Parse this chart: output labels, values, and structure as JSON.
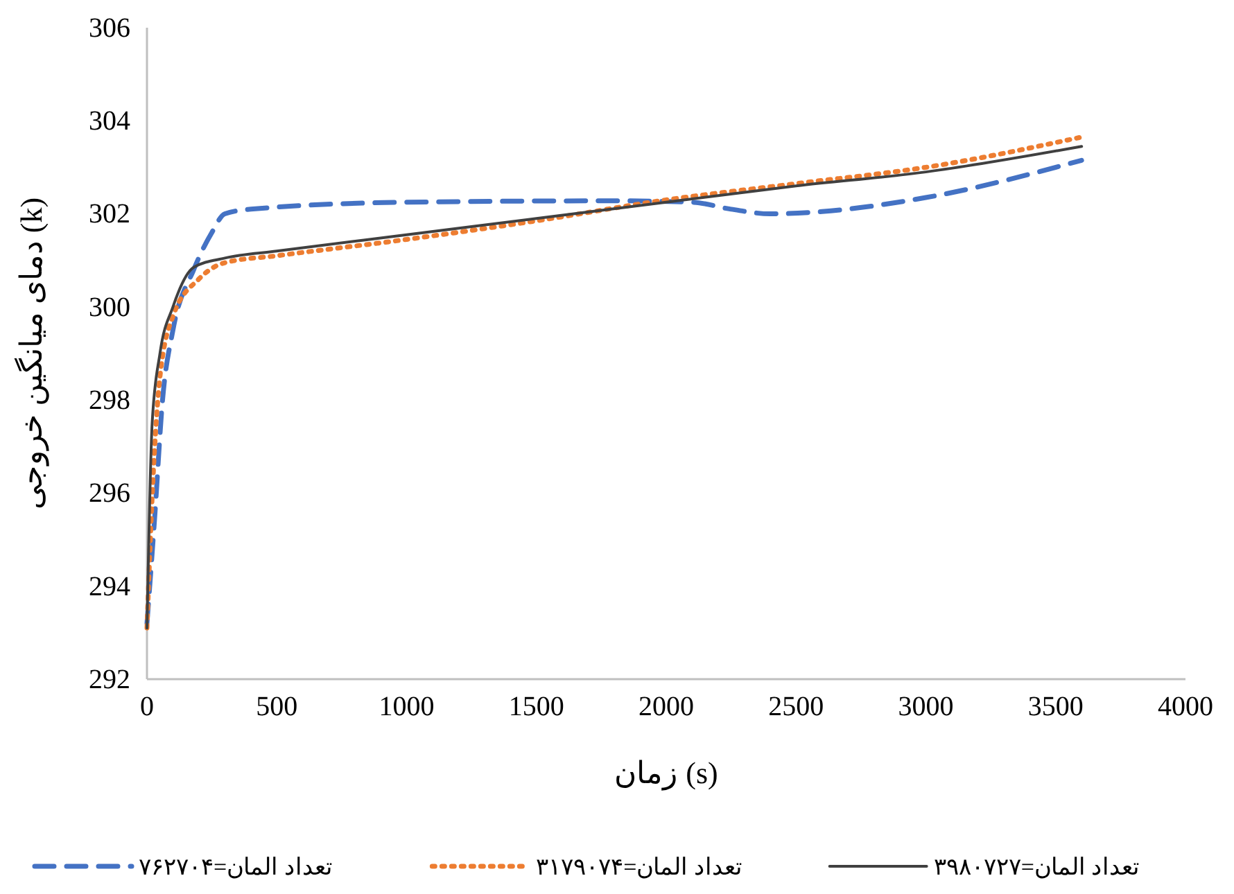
{
  "chart_data": {
    "type": "line",
    "xlabel": "زمان (s)",
    "ylabel": "دمای میانگین خروجی (k)",
    "xlim": [
      0,
      4000
    ],
    "xticks": [
      0,
      500,
      1000,
      1500,
      2000,
      2500,
      3000,
      3500,
      4000
    ],
    "ylim": [
      292,
      306
    ],
    "yticks": [
      292,
      294,
      296,
      298,
      300,
      302,
      304,
      306
    ],
    "grid": false,
    "legend": "bottom",
    "series": [
      {
        "name": "تعداد المان=۷۶۲۷۰۴",
        "color": "#4472c4",
        "line_style": "dashed",
        "x": [
          0,
          30,
          60,
          100,
          180,
          250,
          300,
          400,
          1000,
          1800,
          2100,
          2250,
          2400,
          2600,
          3000,
          3600
        ],
        "values": [
          293.2,
          295.5,
          298,
          299.5,
          300.8,
          301.6,
          302.0,
          302.1,
          302.25,
          302.28,
          302.25,
          302.1,
          302.0,
          302.05,
          302.35,
          303.15
        ]
      },
      {
        "name": "تعداد المان=۳۱۷۹۰۷۴",
        "color": "#ed7d31",
        "line_style": "dotted",
        "x": [
          0,
          25,
          50,
          100,
          200,
          300,
          500,
          1000,
          1500,
          2000,
          2500,
          3000,
          3600
        ],
        "values": [
          293.1,
          296.5,
          298.5,
          299.8,
          300.6,
          300.95,
          301.1,
          301.45,
          301.85,
          302.3,
          302.65,
          303.0,
          303.65
        ]
      },
      {
        "name": "تعداد المان=۳۹۸۰۷۲۷",
        "color": "#404040",
        "line_style": "solid",
        "x": [
          0,
          20,
          50,
          100,
          180,
          300,
          500,
          1000,
          1500,
          2000,
          2500,
          3000,
          3600
        ],
        "values": [
          293.1,
          297.5,
          299,
          300,
          300.85,
          301.05,
          301.2,
          301.55,
          301.9,
          302.25,
          302.6,
          302.9,
          303.45
        ]
      }
    ]
  }
}
